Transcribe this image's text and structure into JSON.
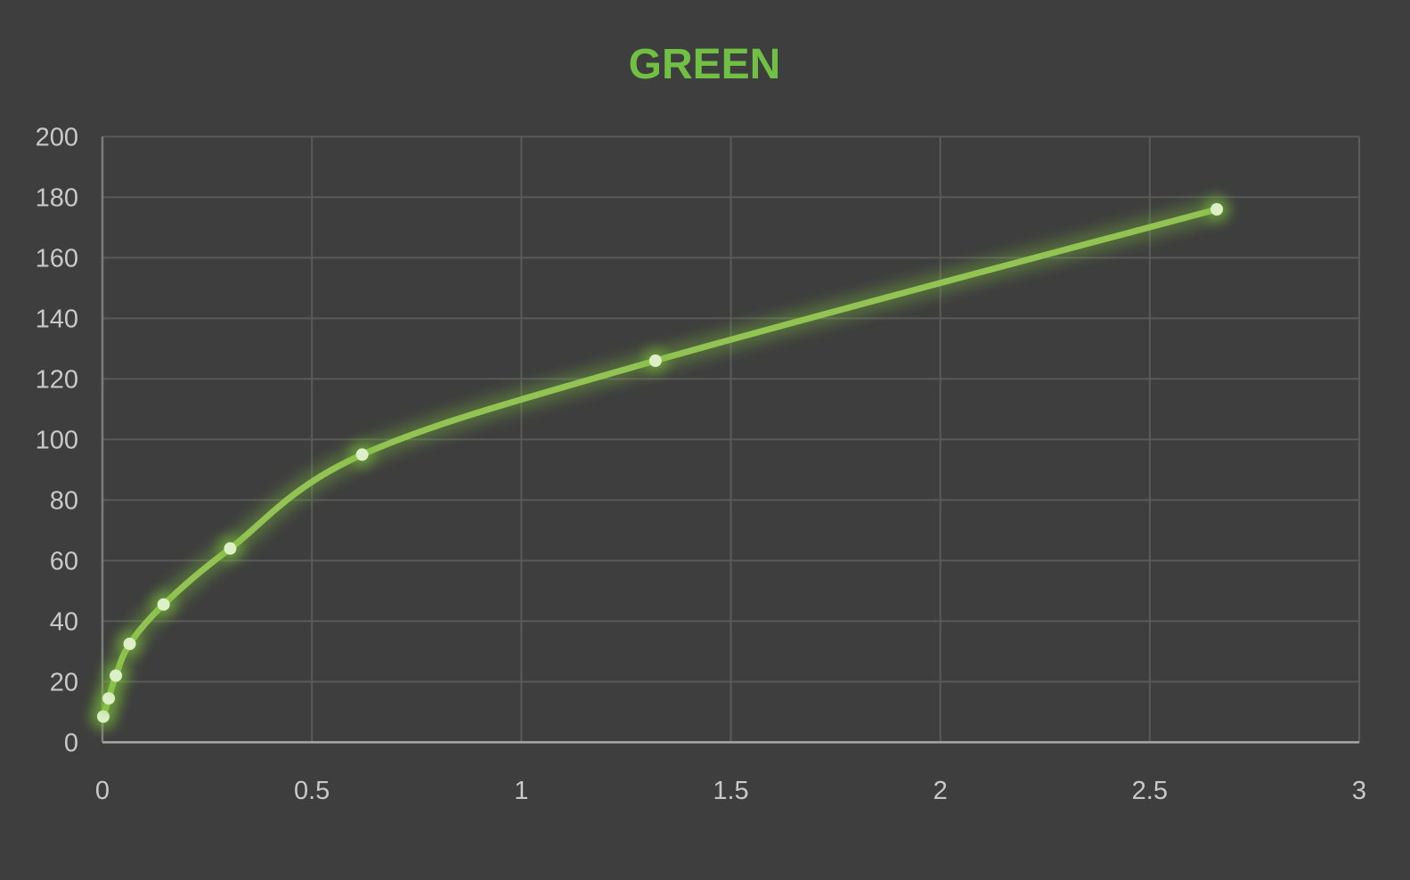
{
  "chart_data": {
    "type": "line",
    "title": "GREEN",
    "xlabel": "",
    "ylabel": "",
    "xlim": [
      0,
      3
    ],
    "ylim": [
      0,
      200
    ],
    "grid": true,
    "legend": "none",
    "x_ticks": {
      "values": [
        0,
        0.5,
        1,
        1.5,
        2,
        2.5,
        3
      ],
      "labels": [
        "0",
        "0.5",
        "1",
        "1.5",
        "2",
        "2.5",
        "3"
      ]
    },
    "y_ticks": {
      "values": [
        0,
        20,
        40,
        60,
        80,
        100,
        120,
        140,
        160,
        180,
        200
      ],
      "labels": [
        "0",
        "20",
        "40",
        "60",
        "80",
        "100",
        "120",
        "140",
        "160",
        "180",
        "200"
      ]
    },
    "series": [
      {
        "name": "GREEN",
        "smooth": true,
        "glow": true,
        "points": [
          {
            "x": 0.002,
            "y": 8.5
          },
          {
            "x": 0.015,
            "y": 14.5
          },
          {
            "x": 0.032,
            "y": 22
          },
          {
            "x": 0.065,
            "y": 32.5
          },
          {
            "x": 0.146,
            "y": 45.5
          },
          {
            "x": 0.305,
            "y": 64
          },
          {
            "x": 0.62,
            "y": 95
          },
          {
            "x": 1.32,
            "y": 126
          },
          {
            "x": 2.66,
            "y": 176
          }
        ]
      }
    ]
  },
  "colors": {
    "background": "#3E3E3E",
    "gridline": "#5A5A5A",
    "x_axis_line": "#A8A8A8",
    "y_axis_line": "#7C7C7C",
    "tick_label": "#C9C9C9",
    "title_green": "#70C044",
    "series_line_green": "#92C353",
    "series_glow_green": "#7CBF3A",
    "marker_fill": "#DDEFC6"
  }
}
